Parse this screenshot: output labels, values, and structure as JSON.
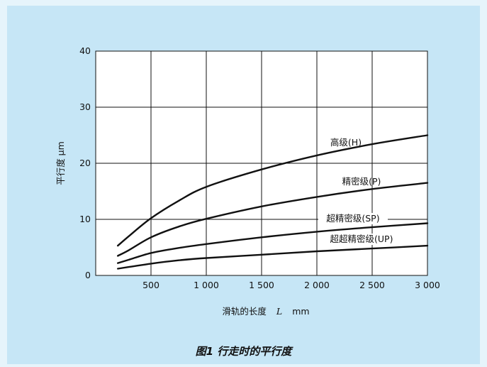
{
  "chart_data": {
    "type": "line",
    "xlabel_prefix": "滑轨的长度",
    "xlabel_var": "L",
    "xlabel_unit": "mm",
    "ylabel": "平行度 μm",
    "xlim": [
      0,
      3000
    ],
    "ylim": [
      0,
      40
    ],
    "x_ticks": [
      500,
      1000,
      1500,
      2000,
      2500,
      3000
    ],
    "x_tick_labels": [
      "500",
      "1 000",
      "1 500",
      "2 000",
      "2 500",
      "3 000"
    ],
    "y_ticks": [
      0,
      10,
      20,
      30,
      40
    ],
    "y_tick_labels": [
      "0",
      "10",
      "20",
      "30",
      "40"
    ],
    "grid": true,
    "series": [
      {
        "name": "高级(H)",
        "x": [
          200,
          300,
          500,
          750,
          1000,
          1500,
          2000,
          2500,
          3000
        ],
        "y": [
          5.3,
          7.0,
          10.2,
          13.3,
          15.8,
          18.9,
          21.4,
          23.4,
          25.0
        ]
      },
      {
        "name": "精密级(P)",
        "x": [
          200,
          300,
          500,
          750,
          1000,
          1500,
          2000,
          2500,
          3000
        ],
        "y": [
          3.5,
          4.5,
          6.8,
          8.7,
          10.1,
          12.3,
          14.0,
          15.4,
          16.5
        ]
      },
      {
        "name": "超精密级(SP)",
        "x": [
          200,
          300,
          500,
          750,
          1000,
          1500,
          2000,
          2500,
          3000
        ],
        "y": [
          2.2,
          2.8,
          4.0,
          4.9,
          5.6,
          6.8,
          7.8,
          8.6,
          9.3
        ]
      },
      {
        "name": "超超精密级(UP)",
        "x": [
          200,
          300,
          500,
          750,
          1000,
          1500,
          2000,
          2500,
          3000
        ],
        "y": [
          1.2,
          1.5,
          2.1,
          2.7,
          3.1,
          3.7,
          4.3,
          4.8,
          5.3
        ]
      }
    ]
  },
  "caption": "图1 行走时的平行度"
}
